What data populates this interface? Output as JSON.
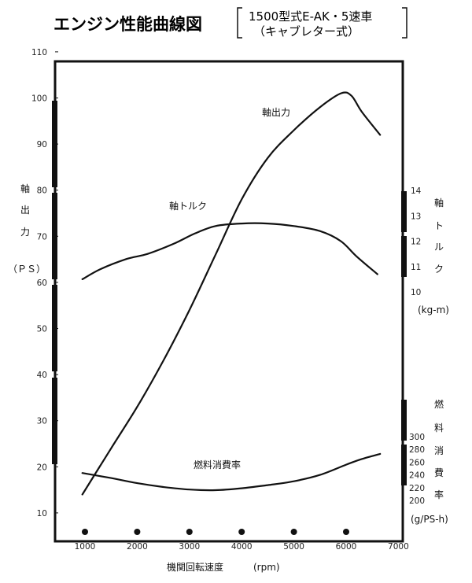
{
  "chart_data": {
    "type": "line",
    "title": "エンジン性能曲線図",
    "subtitle_lines": [
      "1500型式E-AK・5速車",
      "（キャブレター式）"
    ],
    "xlabel": "機関回転速度",
    "xunit": "(rpm)",
    "xlim": [
      500,
      7000
    ],
    "xticks": [
      1000,
      2000,
      3000,
      4000,
      5000,
      6000,
      7000
    ],
    "axes": {
      "power": {
        "label_chars": [
          "軸",
          "出",
          "力"
        ],
        "unit": "（ＰＳ）",
        "ylim": [
          5,
          110
        ],
        "ticks": [
          10,
          20,
          30,
          40,
          50,
          60,
          70,
          80,
          90,
          100,
          110
        ]
      },
      "torque": {
        "label_chars": [
          "軸",
          "ト",
          "ル",
          "ク"
        ],
        "unit": "(kg-m)",
        "ylim": [
          10,
          14
        ],
        "ticks": [
          10,
          11,
          12,
          13,
          14
        ]
      },
      "fuel": {
        "label_chars": [
          "燃",
          "料",
          "消",
          "費",
          "率"
        ],
        "unit": "(g/PS-h)",
        "ylim": [
          200,
          300
        ],
        "ticks": [
          200,
          220,
          240,
          260,
          280,
          300
        ]
      }
    },
    "series": [
      {
        "name": "軸出力",
        "axis": "power",
        "x": [
          950,
          1500,
          2000,
          2500,
          3000,
          3500,
          4000,
          4500,
          5000,
          5500,
          5900,
          6100,
          6300,
          6650
        ],
        "y": [
          14,
          24,
          33,
          43,
          54,
          66,
          78,
          87,
          93,
          98,
          101,
          100.5,
          97,
          92
        ]
      },
      {
        "name": "軸トルク",
        "axis": "torque",
        "x": [
          950,
          1300,
          1800,
          2200,
          2700,
          3100,
          3500,
          4000,
          4500,
          5000,
          5500,
          5900,
          6200,
          6600
        ],
        "y": [
          10.5,
          10.9,
          11.3,
          11.5,
          11.9,
          12.3,
          12.6,
          12.7,
          12.7,
          12.6,
          12.4,
          12.0,
          11.4,
          10.7
        ]
      },
      {
        "name": "燃料消費率",
        "axis": "fuel",
        "x": [
          950,
          1500,
          2000,
          2500,
          3000,
          3500,
          4000,
          4500,
          5000,
          5500,
          6000,
          6300,
          6650
        ],
        "y": [
          243,
          235,
          227,
          221,
          217,
          216,
          219,
          224,
          230,
          240,
          256,
          265,
          273
        ]
      }
    ],
    "markers_x": [
      1000,
      2000,
      3000,
      4000,
      5000,
      6000
    ]
  }
}
